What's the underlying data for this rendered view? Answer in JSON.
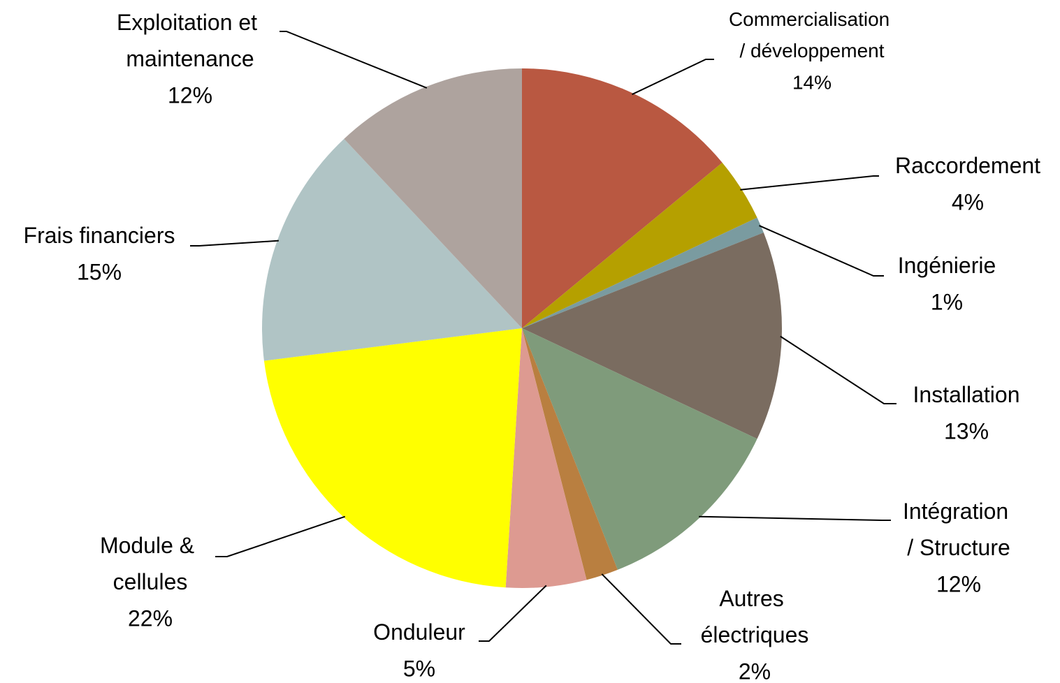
{
  "chart_data": {
    "type": "pie",
    "categories": [
      "Commercialisation / développement",
      "Raccordement",
      "Ingénierie",
      "Installation",
      "Intégration / Structure",
      "Autres électriques",
      "Onduleur",
      "Module & cellules",
      "Frais financiers",
      "Exploitation et maintenance"
    ],
    "values": [
      14,
      4,
      1,
      13,
      12,
      2,
      5,
      22,
      15,
      12
    ],
    "value_labels": [
      "14%",
      "4%",
      "1%",
      "13%",
      "12%",
      "2%",
      "5%",
      "22%",
      "15%",
      "12%"
    ],
    "colors": [
      "#b95841",
      "#b5a000",
      "#7a9ba0",
      "#7a6c60",
      "#7f9b7b",
      "#b97f40",
      "#dd9a91",
      "#ffff00",
      "#b0c4c5",
      "#aea39e"
    ]
  }
}
